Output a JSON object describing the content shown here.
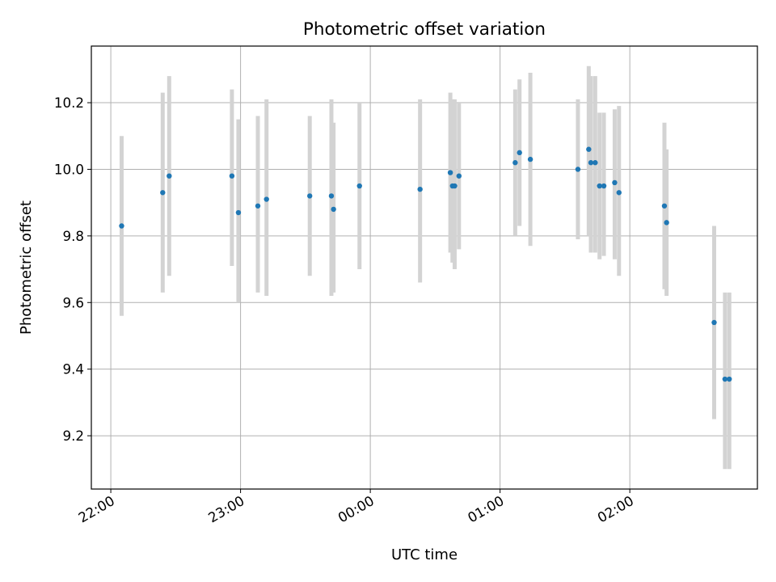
{
  "chart_data": {
    "type": "scatter",
    "title": "Photometric offset variation",
    "xlabel": "UTC time",
    "ylabel": "Photometric offset",
    "x_unit": "UTC date-time",
    "xlim": [
      "2000-01-01T21:51",
      "2000-01-02T02:59"
    ],
    "ylim": [
      9.04,
      10.37
    ],
    "xticks": [
      {
        "label": "22:00",
        "time": "22:00"
      },
      {
        "label": "23:00",
        "time": "23:00"
      },
      {
        "label": "00:00",
        "time": "00:00"
      },
      {
        "label": "01:00",
        "time": "01:00"
      },
      {
        "label": "02:00",
        "time": "02:00"
      }
    ],
    "yticks": [
      9.2,
      9.4,
      9.6,
      9.8,
      10.0,
      10.2
    ],
    "grid": true,
    "marker_color": "#1f77b4",
    "errorbar_color": "#d3d3d3",
    "points": [
      {
        "time": "22:05",
        "y": 9.83,
        "ylow": 9.56,
        "yhigh": 10.1
      },
      {
        "time": "22:24",
        "y": 9.93,
        "ylow": 9.63,
        "yhigh": 10.23
      },
      {
        "time": "22:27",
        "y": 9.98,
        "ylow": 9.68,
        "yhigh": 10.28
      },
      {
        "time": "22:56",
        "y": 9.98,
        "ylow": 9.71,
        "yhigh": 10.24
      },
      {
        "time": "22:59",
        "y": 9.87,
        "ylow": 9.6,
        "yhigh": 10.15
      },
      {
        "time": "23:08",
        "y": 9.89,
        "ylow": 9.63,
        "yhigh": 10.16
      },
      {
        "time": "23:12",
        "y": 9.91,
        "ylow": 9.62,
        "yhigh": 10.21
      },
      {
        "time": "23:32",
        "y": 9.92,
        "ylow": 9.68,
        "yhigh": 10.16
      },
      {
        "time": "23:42",
        "y": 9.92,
        "ylow": 9.62,
        "yhigh": 10.21
      },
      {
        "time": "23:43",
        "y": 9.88,
        "ylow": 9.63,
        "yhigh": 10.14
      },
      {
        "time": "23:55",
        "y": 9.95,
        "ylow": 9.7,
        "yhigh": 10.2
      },
      {
        "time": "00:23",
        "y": 9.94,
        "ylow": 9.66,
        "yhigh": 10.21
      },
      {
        "time": "00:37",
        "y": 9.99,
        "ylow": 9.75,
        "yhigh": 10.23
      },
      {
        "time": "00:38",
        "y": 9.95,
        "ylow": 9.72,
        "yhigh": 10.21
      },
      {
        "time": "00:39",
        "y": 9.95,
        "ylow": 9.7,
        "yhigh": 10.21
      },
      {
        "time": "00:41",
        "y": 9.98,
        "ylow": 9.76,
        "yhigh": 10.2
      },
      {
        "time": "01:07",
        "y": 10.02,
        "ylow": 9.8,
        "yhigh": 10.24
      },
      {
        "time": "01:09",
        "y": 10.05,
        "ylow": 9.83,
        "yhigh": 10.27
      },
      {
        "time": "01:14",
        "y": 10.03,
        "ylow": 9.77,
        "yhigh": 10.29
      },
      {
        "time": "01:36",
        "y": 10.0,
        "ylow": 9.79,
        "yhigh": 10.21
      },
      {
        "time": "01:41",
        "y": 10.06,
        "ylow": 9.8,
        "yhigh": 10.31
      },
      {
        "time": "01:42",
        "y": 10.02,
        "ylow": 9.75,
        "yhigh": 10.28
      },
      {
        "time": "01:44",
        "y": 10.02,
        "ylow": 9.75,
        "yhigh": 10.28
      },
      {
        "time": "01:46",
        "y": 9.95,
        "ylow": 9.73,
        "yhigh": 10.17
      },
      {
        "time": "01:48",
        "y": 9.95,
        "ylow": 9.74,
        "yhigh": 10.17
      },
      {
        "time": "01:53",
        "y": 9.96,
        "ylow": 9.73,
        "yhigh": 10.18
      },
      {
        "time": "01:55",
        "y": 9.93,
        "ylow": 9.68,
        "yhigh": 10.19
      },
      {
        "time": "02:16",
        "y": 9.89,
        "ylow": 9.64,
        "yhigh": 10.14
      },
      {
        "time": "02:17",
        "y": 9.84,
        "ylow": 9.62,
        "yhigh": 10.06
      },
      {
        "time": "02:39",
        "y": 9.54,
        "ylow": 9.25,
        "yhigh": 9.83
      },
      {
        "time": "02:44",
        "y": 9.37,
        "ylow": 9.1,
        "yhigh": 9.63
      },
      {
        "time": "02:46",
        "y": 9.37,
        "ylow": 9.1,
        "yhigh": 9.63
      }
    ]
  }
}
